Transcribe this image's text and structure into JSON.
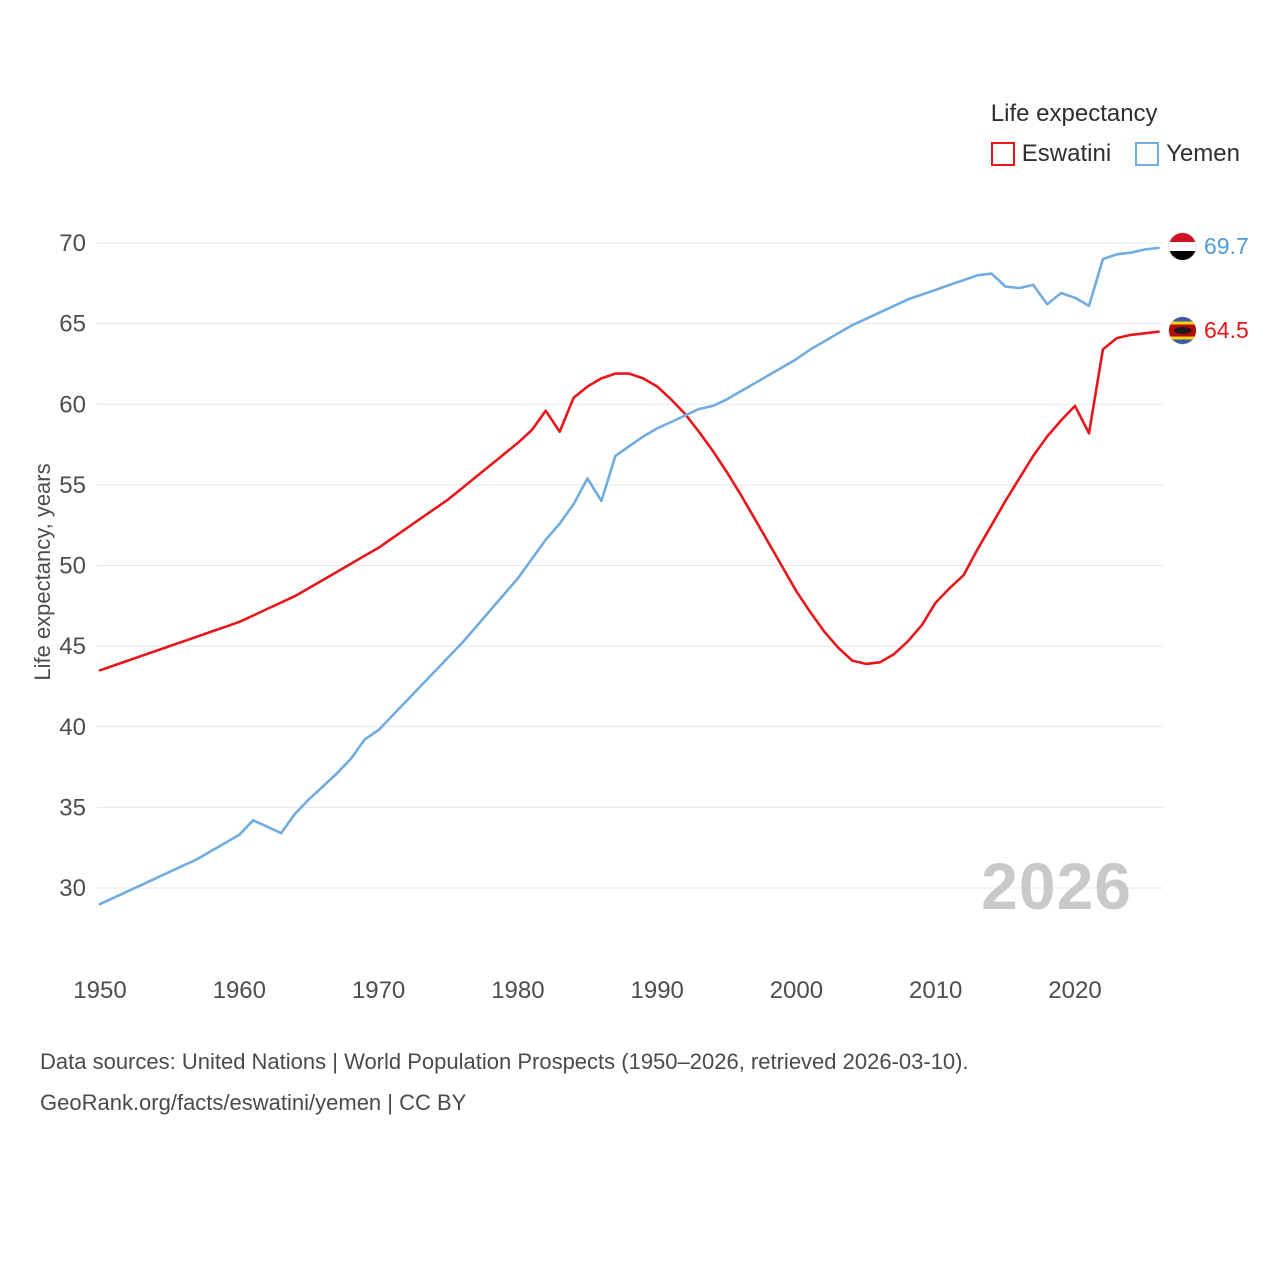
{
  "legend": {
    "title": "Life expectancy",
    "items": [
      {
        "label": "Eswatini",
        "color": "#e8161b"
      },
      {
        "label": "Yemen",
        "color": "#71acdf"
      }
    ]
  },
  "axes": {
    "y_label": "Life expectancy, years"
  },
  "watermark": "2026",
  "end_labels": [
    {
      "series": "Yemen",
      "value": "69.7",
      "color": "#4f9bd8",
      "flag": "yemen-flag"
    },
    {
      "series": "Eswatini",
      "value": "64.5",
      "color": "#e8161b",
      "flag": "eswatini-flag"
    }
  ],
  "footer": {
    "line1": "Data sources: United Nations | World Population Prospects (1950–2026, retrieved 2026-03-10).",
    "line2": "GeoRank.org/facts/eswatini/yemen | CC BY"
  },
  "chart_data": {
    "type": "line",
    "title": "Life expectancy",
    "xlabel": "",
    "ylabel": "Life expectancy, years",
    "xlim": [
      1950,
      2026
    ],
    "ylim": [
      27.5,
      71.5
    ],
    "yticks": [
      30,
      35,
      40,
      45,
      50,
      55,
      60,
      65,
      70
    ],
    "xticks": [
      1950,
      1960,
      1970,
      1980,
      1990,
      2000,
      2010,
      2020
    ],
    "grid": "horizontal",
    "legend_position": "top-right",
    "x": [
      1950,
      1951,
      1952,
      1953,
      1954,
      1955,
      1956,
      1957,
      1958,
      1959,
      1960,
      1961,
      1962,
      1963,
      1964,
      1965,
      1966,
      1967,
      1968,
      1969,
      1970,
      1971,
      1972,
      1973,
      1974,
      1975,
      1976,
      1977,
      1978,
      1979,
      1980,
      1981,
      1982,
      1983,
      1984,
      1985,
      1986,
      1987,
      1988,
      1989,
      1990,
      1991,
      1992,
      1993,
      1994,
      1995,
      1996,
      1997,
      1998,
      1999,
      2000,
      2001,
      2002,
      2003,
      2004,
      2005,
      2006,
      2007,
      2008,
      2009,
      2010,
      2011,
      2012,
      2013,
      2014,
      2015,
      2016,
      2017,
      2018,
      2019,
      2020,
      2021,
      2022,
      2023,
      2024,
      2025,
      2026
    ],
    "series": [
      {
        "name": "Eswatini",
        "color": "#e8161b",
        "end_value": 64.5,
        "values": [
          43.5,
          43.8,
          44.1,
          44.4,
          44.7,
          45.0,
          45.3,
          45.6,
          45.9,
          46.2,
          46.5,
          46.9,
          47.3,
          47.7,
          48.1,
          48.6,
          49.1,
          49.6,
          50.1,
          50.6,
          51.1,
          51.7,
          52.3,
          52.9,
          53.5,
          54.1,
          54.8,
          55.5,
          56.2,
          56.9,
          57.6,
          58.4,
          59.6,
          58.3,
          60.4,
          61.1,
          61.6,
          61.9,
          61.9,
          61.6,
          61.1,
          60.3,
          59.4,
          58.3,
          57.1,
          55.8,
          54.4,
          52.9,
          51.4,
          49.9,
          48.4,
          47.1,
          45.9,
          44.9,
          44.1,
          43.9,
          44.0,
          44.5,
          45.3,
          46.3,
          47.7,
          48.6,
          49.4,
          51.0,
          52.5,
          54.0,
          55.4,
          56.8,
          58.0,
          59.0,
          59.9,
          58.2,
          63.4,
          64.1,
          64.3,
          64.4,
          64.5
        ]
      },
      {
        "name": "Yemen",
        "color": "#71acdf",
        "end_value": 69.7,
        "values": [
          29.0,
          29.4,
          29.8,
          30.2,
          30.6,
          31.0,
          31.4,
          31.8,
          32.3,
          32.8,
          33.3,
          34.2,
          33.8,
          33.4,
          34.6,
          35.5,
          36.3,
          37.1,
          38.0,
          39.2,
          39.8,
          40.7,
          41.6,
          42.5,
          43.4,
          44.3,
          45.2,
          46.2,
          47.2,
          48.2,
          49.2,
          50.4,
          51.6,
          52.6,
          53.8,
          55.4,
          54.0,
          56.8,
          57.4,
          58.0,
          58.5,
          58.9,
          59.3,
          59.7,
          59.9,
          60.3,
          60.8,
          61.3,
          61.8,
          62.3,
          62.8,
          63.4,
          63.9,
          64.4,
          64.9,
          65.3,
          65.7,
          66.1,
          66.5,
          66.8,
          67.1,
          67.4,
          67.7,
          68.0,
          68.1,
          67.3,
          67.2,
          67.4,
          66.2,
          66.9,
          66.6,
          66.1,
          69.0,
          69.3,
          69.4,
          69.6,
          69.7
        ]
      }
    ]
  }
}
